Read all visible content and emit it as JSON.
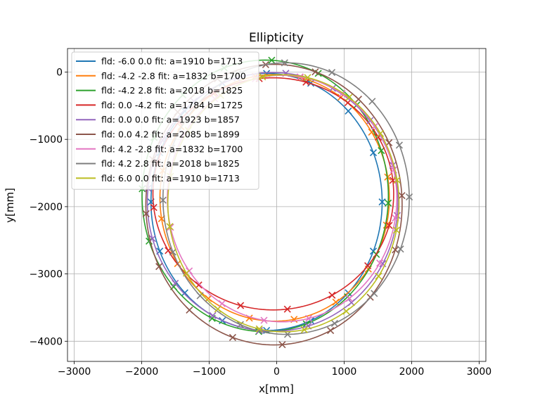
{
  "chart_data": {
    "type": "scatter",
    "title": "Ellipticity",
    "xlabel": "x[mm]",
    "ylabel": "y[mm]",
    "xlim": [
      -3100,
      3100
    ],
    "ylim": [
      -4300,
      350
    ],
    "xticks": [
      -3000,
      -2000,
      -1000,
      0,
      1000,
      2000,
      3000
    ],
    "xtick_labels": [
      "−3000",
      "−2000",
      "−1000",
      "0",
      "1000",
      "2000",
      "3000"
    ],
    "yticks": [
      0,
      -1000,
      -2000,
      -3000,
      -4000
    ],
    "ytick_labels": [
      "0",
      "−1000",
      "−2000",
      "−3000",
      "−4000"
    ],
    "grid": true,
    "legend_position": "top-left",
    "marker_count_per_series": 16,
    "series": [
      {
        "name": "fld: -6.0 0.0 fit: a=1910 b=1713",
        "color": "#1f77b4",
        "cx": -150,
        "cy": -1930,
        "a": 1713,
        "b": 1910
      },
      {
        "name": "fld: -4.2 -2.8 fit: a=1832 b=1700",
        "color": "#ff7f0e",
        "cx": -30,
        "cy": -1870,
        "a": 1700,
        "b": 1832
      },
      {
        "name": "fld: -4.2 2.8 fit: a=2018 b=1825",
        "color": "#2ca02c",
        "cx": -170,
        "cy": -1840,
        "a": 1825,
        "b": 2018
      },
      {
        "name": "fld: 0.0 -4.2 fit: a=1784 b=1725",
        "color": "#d62728",
        "cx": -50,
        "cy": -1810,
        "a": 1784,
        "b": 1725
      },
      {
        "name": "fld: 0.0 0.0 fit: a=1923 b=1857",
        "color": "#9467bd",
        "cx": -60,
        "cy": -1930,
        "a": 1857,
        "b": 1923
      },
      {
        "name": "fld: 0.0 4.2 fit: a=2085 b=1899",
        "color": "#8c564b",
        "cx": -40,
        "cy": -1970,
        "a": 1899,
        "b": 2085
      },
      {
        "name": "fld: 4.2 -2.8 fit: a=1832 b=1700",
        "color": "#e377c2",
        "cx": 80,
        "cy": -1880,
        "a": 1700,
        "b": 1832
      },
      {
        "name": "fld: 4.2 2.8 fit: a=2018 b=1825",
        "color": "#7f7f7f",
        "cx": 140,
        "cy": -1880,
        "a": 1825,
        "b": 2018
      },
      {
        "name": "fld: 6.0 0.0 fit: a=1910 b=1713",
        "color": "#bcbd22",
        "cx": 100,
        "cy": -1950,
        "a": 1713,
        "b": 1910
      }
    ]
  }
}
